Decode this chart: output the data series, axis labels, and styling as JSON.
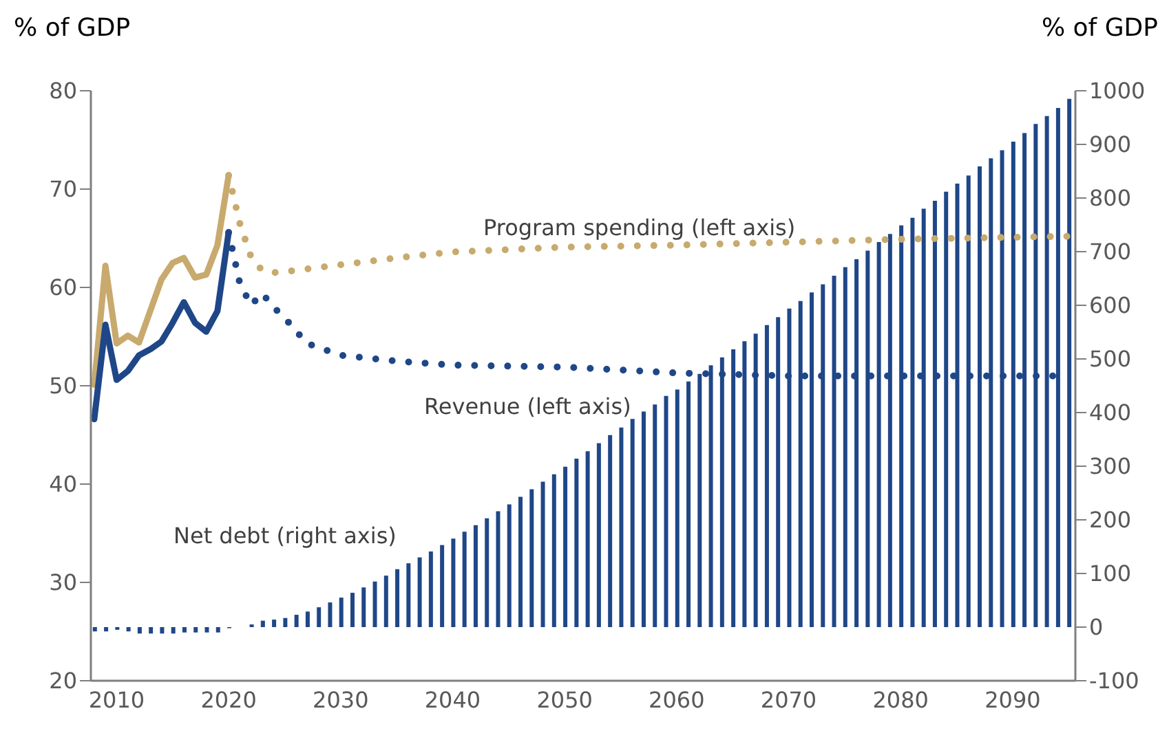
{
  "chart_data": {
    "type": "line",
    "ylabel": "% of GDP",
    "y2label": "% of GDP",
    "xlim": [
      2007.7,
      2095.6
    ],
    "xticks": [
      2010,
      2020,
      2030,
      2040,
      2050,
      2060,
      2070,
      2080,
      2090
    ],
    "ylim": [
      20,
      80
    ],
    "yticks": [
      20,
      30,
      40,
      50,
      60,
      70,
      80
    ],
    "y2lim": [
      -100,
      1000
    ],
    "y2ticks": [
      -100,
      0,
      100,
      200,
      300,
      400,
      500,
      600,
      700,
      800,
      900,
      1000
    ],
    "marker": "none",
    "series": [
      {
        "name": "Net debt (right axis)",
        "type": "bar",
        "axis": "y2",
        "color": "#1f4788",
        "x": [
          2008,
          2009,
          2010,
          2011,
          2012,
          2013,
          2014,
          2015,
          2016,
          2017,
          2018,
          2019,
          2020,
          2021,
          2022,
          2023,
          2024,
          2025,
          2026,
          2027,
          2028,
          2029,
          2030,
          2031,
          2032,
          2033,
          2034,
          2035,
          2036,
          2037,
          2038,
          2039,
          2040,
          2041,
          2042,
          2043,
          2044,
          2045,
          2046,
          2047,
          2048,
          2049,
          2050,
          2051,
          2052,
          2053,
          2054,
          2055,
          2056,
          2057,
          2058,
          2059,
          2060,
          2061,
          2062,
          2063,
          2064,
          2065,
          2066,
          2067,
          2068,
          2069,
          2070,
          2071,
          2072,
          2073,
          2074,
          2075,
          2076,
          2077,
          2078,
          2079,
          2080,
          2081,
          2082,
          2083,
          2084,
          2085,
          2086,
          2087,
          2088,
          2089,
          2090,
          2091,
          2092,
          2093,
          2094,
          2095
        ],
        "values": [
          -8,
          -8,
          -5,
          -8,
          -12,
          -12,
          -12,
          -12,
          -10,
          -10,
          -10,
          -10,
          -2,
          0,
          5,
          12,
          14,
          17,
          23,
          29,
          37,
          46,
          55,
          64,
          74,
          85,
          96,
          108,
          119,
          130,
          141,
          153,
          165,
          178,
          190,
          203,
          216,
          229,
          243,
          257,
          271,
          285,
          299,
          314,
          328,
          343,
          358,
          372,
          388,
          402,
          415,
          431,
          443,
          458,
          472,
          488,
          503,
          518,
          533,
          547,
          563,
          578,
          594,
          608,
          624,
          639,
          655,
          671,
          686,
          702,
          718,
          733,
          749,
          763,
          780,
          795,
          812,
          827,
          842,
          859,
          874,
          889,
          905,
          921,
          938,
          953,
          968,
          985
        ]
      },
      {
        "axis": "y",
        "color": "#c8aa6e",
        "line_style": "solid",
        "x": [
          2008,
          2009,
          2010,
          2011,
          2012,
          2013,
          2014,
          2015,
          2016,
          2017,
          2018,
          2019,
          2020
        ],
        "values": [
          50.1,
          62.2,
          54.3,
          55.1,
          54.4,
          57.6,
          60.8,
          62.5,
          63.0,
          61.0,
          61.3,
          64.3,
          71.4
        ]
      },
      {
        "name": "Program spending (left axis)",
        "axis": "y",
        "color": "#c8aa6e",
        "line_style": "dotted",
        "x": [
          2020,
          2021,
          2022,
          2023,
          2024,
          2025,
          2030,
          2035,
          2040,
          2050,
          2060,
          2070,
          2080,
          2095
        ],
        "values": [
          71.4,
          66.5,
          63.1,
          61.7,
          61.5,
          61.6,
          62.3,
          63.0,
          63.6,
          64.1,
          64.3,
          64.6,
          64.9,
          65.2
        ]
      },
      {
        "axis": "y",
        "color": "#1f4788",
        "line_style": "solid",
        "x": [
          2008,
          2009,
          2010,
          2011,
          2012,
          2013,
          2014,
          2015,
          2016,
          2017,
          2018,
          2019,
          2020
        ],
        "values": [
          46.6,
          56.2,
          50.6,
          51.5,
          53.1,
          53.7,
          54.5,
          56.4,
          58.5,
          56.4,
          55.5,
          57.6,
          65.6
        ]
      },
      {
        "name": "Revenue (left axis)",
        "axis": "y",
        "color": "#1f4788",
        "line_style": "dotted",
        "x": [
          2020,
          2021,
          2022,
          2023,
          2024,
          2025,
          2027,
          2030,
          2035,
          2040,
          2050,
          2060,
          2070,
          2080,
          2094.5
        ],
        "values": [
          65.6,
          60.4,
          58.2,
          59.4,
          58.0,
          56.9,
          54.3,
          53.1,
          52.5,
          52.1,
          51.9,
          51.3,
          51.0,
          51.0,
          51.0
        ]
      }
    ]
  }
}
